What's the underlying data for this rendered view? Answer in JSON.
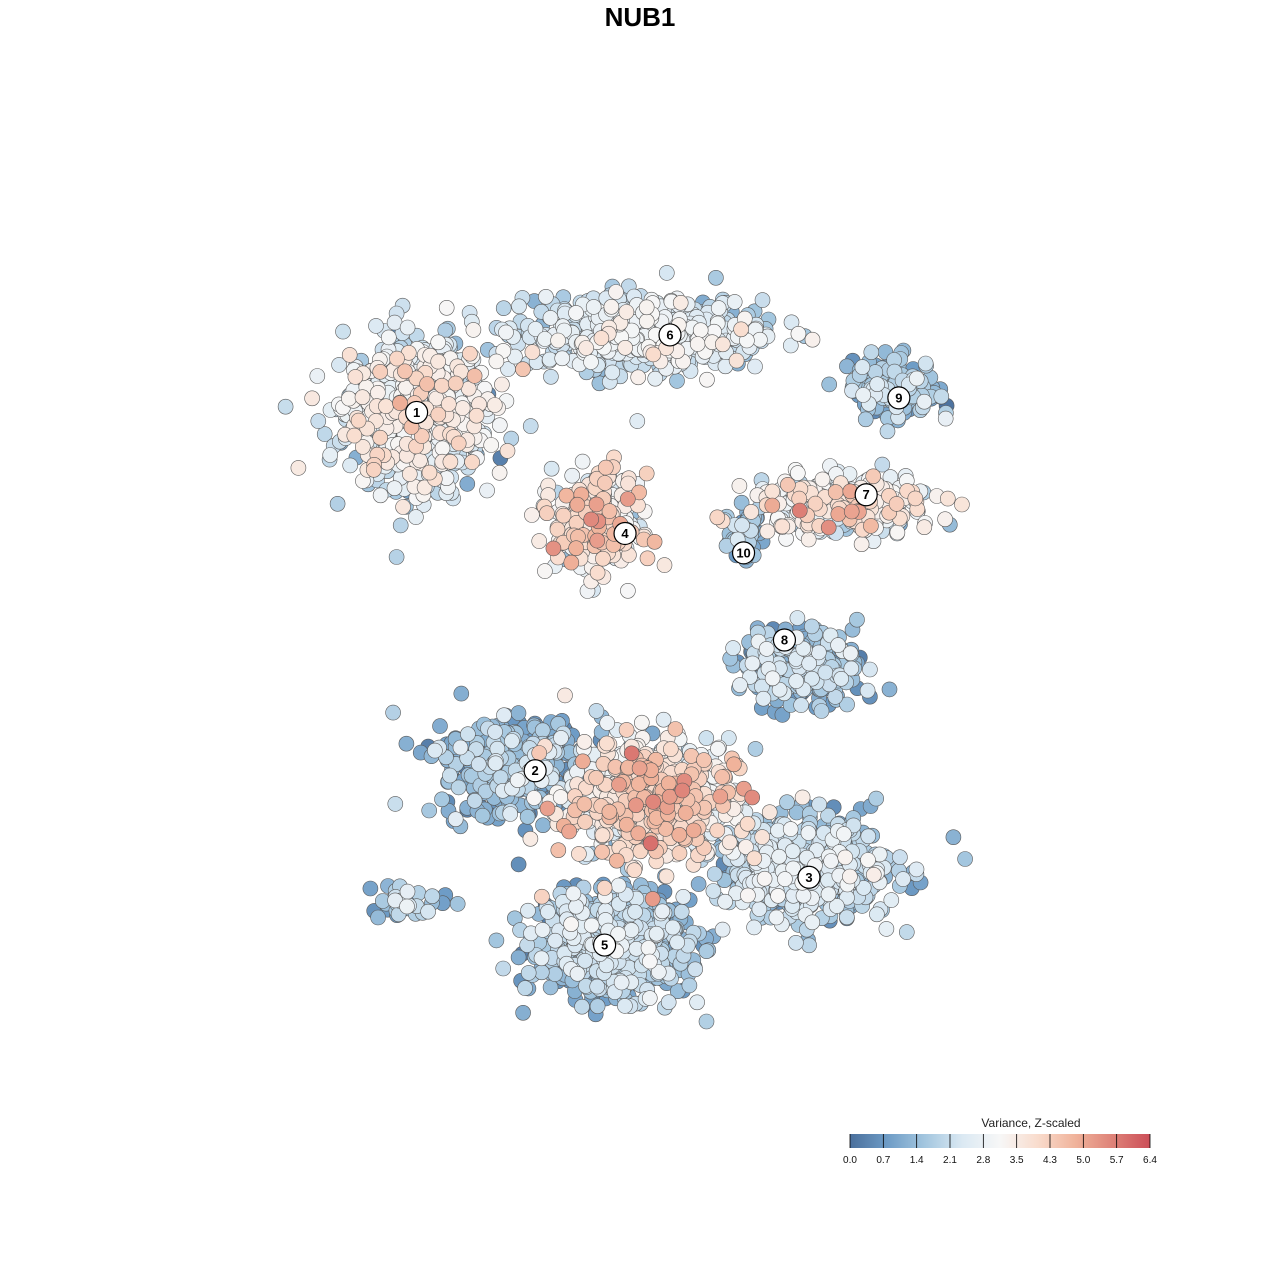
{
  "chart_data": {
    "type": "scatter",
    "title": "NUB1",
    "legend": {
      "title": "Variance, Z-scaled",
      "placement": "bottom-right",
      "range": [
        0.0,
        6.4
      ],
      "ticks": [
        "0.0",
        "0.7",
        "1.4",
        "2.1",
        "2.8",
        "3.5",
        "4.3",
        "5.0",
        "5.7",
        "6.4"
      ],
      "colors": [
        "#4a6f9c",
        "#6e9cc6",
        "#a3c6df",
        "#dbe9f3",
        "#f7f7f7",
        "#f9dccd",
        "#f0b39b",
        "#de8278",
        "#cc4e58"
      ]
    },
    "clusters": [
      {
        "label": "1",
        "x": -6.2,
        "y": 4.7,
        "sx": 1.55,
        "sy": 1.35,
        "n": 900,
        "mean": 2.5,
        "sd": 0.75
      },
      {
        "label": "6",
        "x": -0.6,
        "y": 6.3,
        "sx": 2.6,
        "sy": 0.65,
        "n": 650,
        "mean": 2.3,
        "sd": 0.6
      },
      {
        "label": "9",
        "x": 5.5,
        "y": 5.2,
        "sx": 0.95,
        "sy": 0.55,
        "n": 170,
        "mean": 1.5,
        "sd": 0.6
      },
      {
        "label": "7",
        "x": 4.3,
        "y": 2.8,
        "sx": 2.0,
        "sy": 0.55,
        "n": 300,
        "mean": 3.0,
        "sd": 0.8
      },
      {
        "label": "4",
        "x": -1.8,
        "y": 2.4,
        "sx": 0.95,
        "sy": 0.9,
        "n": 320,
        "mean": 3.3,
        "sd": 0.8
      },
      {
        "label": "10",
        "x": 1.8,
        "y": 2.2,
        "sx": 0.35,
        "sy": 0.45,
        "n": 60,
        "mean": 1.2,
        "sd": 0.5
      },
      {
        "label": "8",
        "x": 3.2,
        "y": -0.5,
        "sx": 1.3,
        "sy": 0.7,
        "n": 290,
        "mean": 1.4,
        "sd": 0.7
      },
      {
        "label": "2",
        "x": -3.8,
        "y": -2.6,
        "sx": 1.6,
        "sy": 0.95,
        "n": 380,
        "mean": 1.3,
        "sd": 0.6
      },
      {
        "label": "3",
        "x": 3.3,
        "y": -4.7,
        "sx": 2.0,
        "sy": 0.95,
        "n": 600,
        "mean": 1.8,
        "sd": 0.6
      },
      {
        "label": "5",
        "x": -1.5,
        "y": -6.3,
        "sx": 1.7,
        "sy": 0.95,
        "n": 750,
        "mean": 1.6,
        "sd": 0.6
      },
      {
        "label": "",
        "x": -0.5,
        "y": -3.3,
        "sx": 1.9,
        "sy": 1.1,
        "n": 700,
        "mean": 3.3,
        "sd": 0.9
      },
      {
        "label": "",
        "x": -6.4,
        "y": -5.4,
        "sx": 0.85,
        "sy": 0.35,
        "n": 40,
        "mean": 1.6,
        "sd": 0.6
      }
    ],
    "cluster_label_points": [
      {
        "label": "1",
        "x": -6.2,
        "y": 4.7
      },
      {
        "label": "6",
        "x": 0.0,
        "y": 6.3
      },
      {
        "label": "9",
        "x": 5.6,
        "y": 5.0
      },
      {
        "label": "7",
        "x": 4.8,
        "y": 3.0
      },
      {
        "label": "4",
        "x": -1.1,
        "y": 2.2
      },
      {
        "label": "10",
        "x": 1.8,
        "y": 1.8
      },
      {
        "label": "8",
        "x": 2.8,
        "y": 0.0
      },
      {
        "label": "2",
        "x": -3.3,
        "y": -2.7
      },
      {
        "label": "3",
        "x": 3.4,
        "y": -4.9
      },
      {
        "label": "5",
        "x": -1.6,
        "y": -6.3
      }
    ],
    "xlim": [
      -11.5,
      11.5
    ],
    "ylim": [
      -9.5,
      9.5
    ]
  }
}
